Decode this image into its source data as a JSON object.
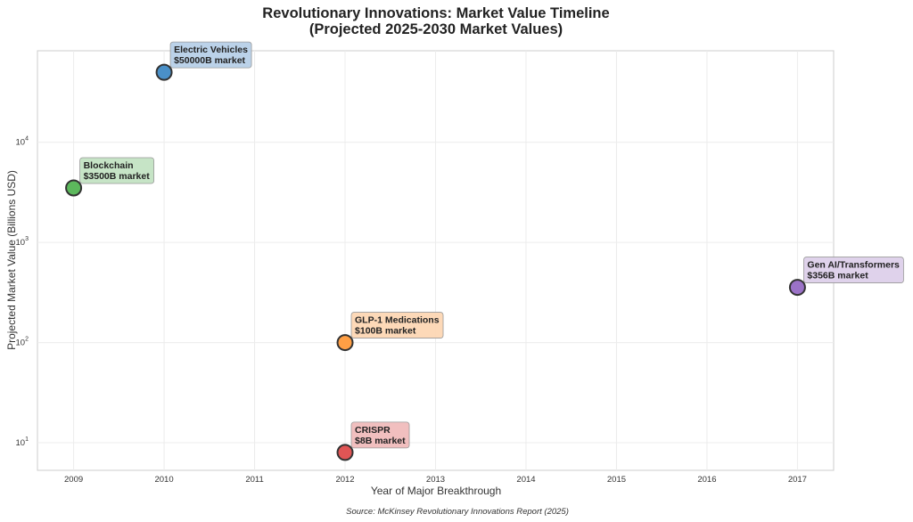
{
  "chart_data": {
    "type": "scatter",
    "title_line1": "Revolutionary Innovations: Market Value Timeline",
    "title_line2": "(Projected 2025-2030 Market Values)",
    "xlabel": "Year of Major Breakthrough",
    "ylabel": "Projected Market Value (Billions USD)",
    "source": "Source: McKinsey Revolutionary Innovations Report (2025)",
    "x_ticks": [
      "2009",
      "2010",
      "2011",
      "2012",
      "2013",
      "2014",
      "2015",
      "2016",
      "2017"
    ],
    "y_ticks": [
      {
        "value": 10,
        "base": "10",
        "exp": "1"
      },
      {
        "value": 100,
        "base": "10",
        "exp": "2"
      },
      {
        "value": 1000,
        "base": "10",
        "exp": "3"
      },
      {
        "value": 10000,
        "base": "10",
        "exp": "4"
      }
    ],
    "xlim": [
      2008.6,
      2017.4
    ],
    "ylim": [
      5.3,
      82000
    ],
    "yscale": "log",
    "grid": true,
    "points": [
      {
        "name": "Blockchain",
        "x": 2009,
        "y": 3500,
        "label": "$3500B market",
        "color": "#5cb85c",
        "box": "#c3e3c3"
      },
      {
        "name": "Electric Vehicles",
        "x": 2010,
        "y": 50000,
        "label": "$50000B market",
        "color": "#4a90c8",
        "box": "#b7d0e8"
      },
      {
        "name": "GLP-1 Medications",
        "x": 2012,
        "y": 100,
        "label": "$100B market",
        "color": "#ff9f45",
        "box": "#fdd7b4"
      },
      {
        "name": "CRISPR",
        "x": 2012,
        "y": 8,
        "label": "$8B market",
        "color": "#e05555",
        "box": "#f0bcbc"
      },
      {
        "name": "Gen AI/Transformers",
        "x": 2017,
        "y": 356,
        "label": "$356B market",
        "color": "#9b72c7",
        "box": "#ddd0ea"
      }
    ]
  }
}
